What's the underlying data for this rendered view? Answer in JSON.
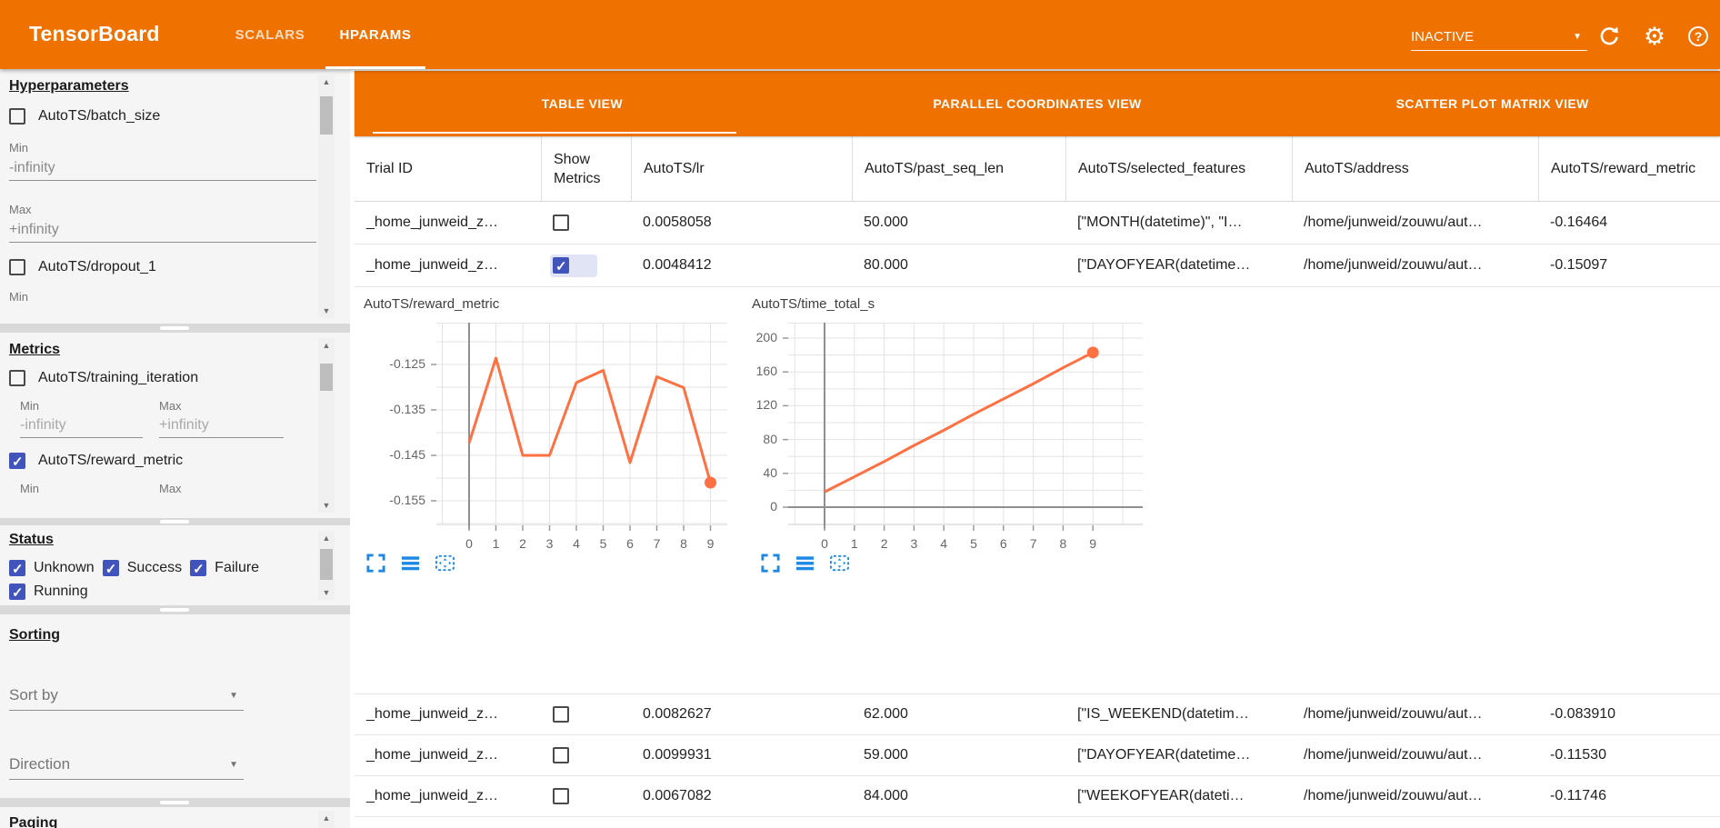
{
  "colors": {
    "header_orange": "#ef7100",
    "checkbox_blue": "#4154bc",
    "line_orange": "#ff7043",
    "toolbar_icon_blue": "#1e88e5",
    "axis_gray": "#8f8f8f",
    "grid_gray": "#e3e3e3"
  },
  "icons": {
    "reload": "⟳",
    "settings": "⚙",
    "help": "?",
    "dropdown_caret": "▼",
    "scroll_up": "▲",
    "scroll_down": "▼",
    "chart_toolbar": [
      "fullscreen",
      "horizontal-bars",
      "fit-to-domain"
    ]
  },
  "header": {
    "title": "TensorBoard",
    "tabs": [
      {
        "label": "SCALARS",
        "active": false
      },
      {
        "label": "HPARAMS",
        "active": true
      }
    ],
    "run_status": "INACTIVE"
  },
  "sidebar": {
    "hyperparameters": {
      "heading": "Hyperparameters",
      "items": [
        {
          "label": "AutoTS/batch_size",
          "checked": false,
          "min_label": "Min",
          "min": "-infinity",
          "max_label": "Max",
          "max": "+infinity"
        },
        {
          "label": "AutoTS/dropout_1",
          "checked": false,
          "min_label": "Min"
        }
      ]
    },
    "metrics": {
      "heading": "Metrics",
      "items": [
        {
          "label": "AutoTS/training_iteration",
          "checked": false,
          "min_label": "Min",
          "min": "-infinity",
          "max_label": "Max",
          "max": "+infinity"
        },
        {
          "label": "AutoTS/reward_metric",
          "checked": true,
          "min_label": "Min",
          "max_label": "Max"
        }
      ]
    },
    "status": {
      "heading": "Status",
      "options": [
        {
          "label": "Unknown",
          "checked": true
        },
        {
          "label": "Success",
          "checked": true
        },
        {
          "label": "Failure",
          "checked": true
        },
        {
          "label": "Running",
          "checked": true
        }
      ]
    },
    "sorting": {
      "heading": "Sorting",
      "sort_by_placeholder": "Sort by",
      "direction_placeholder": "Direction"
    },
    "paging": {
      "heading": "Paging"
    }
  },
  "main": {
    "view_tabs": [
      {
        "label": "TABLE VIEW",
        "active": true
      },
      {
        "label": "PARALLEL COORDINATES VIEW",
        "active": false
      },
      {
        "label": "SCATTER PLOT MATRIX VIEW",
        "active": false
      }
    ],
    "table": {
      "columns": [
        "Trial ID",
        "Show Metrics",
        "AutoTS/lr",
        "AutoTS/past_seq_len",
        "AutoTS/selected_features",
        "AutoTS/address",
        "AutoTS/reward_metric"
      ],
      "rows_top": [
        {
          "trial_id": "_home_junweid_z…",
          "show_metrics": false,
          "lr": "0.0058058",
          "past_seq_len": "50.000",
          "selected_features": "[\"MONTH(datetime)\", \"I…",
          "address": "/home/junweid/zouwu/aut…",
          "reward_metric": "-0.16464"
        },
        {
          "trial_id": "_home_junweid_z…",
          "show_metrics": true,
          "lr": "0.0048412",
          "past_seq_len": "80.000",
          "selected_features": "[\"DAYOFYEAR(datetime…",
          "address": "/home/junweid/zouwu/aut…",
          "reward_metric": "-0.15097"
        }
      ],
      "rows_bottom": [
        {
          "trial_id": "_home_junweid_z…",
          "show_metrics": false,
          "lr": "0.0082627",
          "past_seq_len": "62.000",
          "selected_features": "[\"IS_WEEKEND(datetim…",
          "address": "/home/junweid/zouwu/aut…",
          "reward_metric": "-0.083910"
        },
        {
          "trial_id": "_home_junweid_z…",
          "show_metrics": false,
          "lr": "0.0099931",
          "past_seq_len": "59.000",
          "selected_features": "[\"DAYOFYEAR(datetime…",
          "address": "/home/junweid/zouwu/aut…",
          "reward_metric": "-0.11530"
        },
        {
          "trial_id": "_home_junweid_z…",
          "show_metrics": false,
          "lr": "0.0067082",
          "past_seq_len": "84.000",
          "selected_features": "[\"WEEKOFYEAR(dateti…",
          "address": "/home/junweid/zouwu/aut…",
          "reward_metric": "-0.11746"
        }
      ]
    }
  },
  "chart_data": [
    {
      "type": "line",
      "title": "AutoTS/reward_metric",
      "x": [
        0,
        1,
        2,
        3,
        4,
        5,
        6,
        7,
        8,
        9
      ],
      "values": [
        -0.1423,
        -0.1236,
        -0.145,
        -0.145,
        -0.129,
        -0.1263,
        -0.1466,
        -0.1277,
        -0.1301,
        -0.151
      ],
      "xticks": [
        "0",
        "1",
        "2",
        "3",
        "4",
        "5",
        "6",
        "7",
        "8",
        "9"
      ],
      "yticks": [
        "-0.125",
        "-0.135",
        "-0.145",
        "-0.155"
      ],
      "xlim": [
        -1.2,
        9.6
      ],
      "ylim": [
        -0.1604,
        -0.1158
      ],
      "grid": true,
      "legend": "none",
      "marker_last_point": true
    },
    {
      "type": "line",
      "title": "AutoTS/time_total_s",
      "x": [
        0,
        1,
        2,
        3,
        4,
        5,
        6,
        7,
        8,
        9
      ],
      "values": [
        18,
        36,
        54,
        73,
        91,
        110,
        128,
        146,
        165,
        183
      ],
      "xticks": [
        "0",
        "1",
        "2",
        "3",
        "4",
        "5",
        "6",
        "7",
        "8",
        "9"
      ],
      "yticks": [
        "200",
        "160",
        "120",
        "80",
        "40",
        "0"
      ],
      "xlim": [
        -1.2,
        10.7
      ],
      "ylim": [
        -21.5,
        218.3
      ],
      "grid": true,
      "legend": "none",
      "marker_last_point": true
    }
  ]
}
